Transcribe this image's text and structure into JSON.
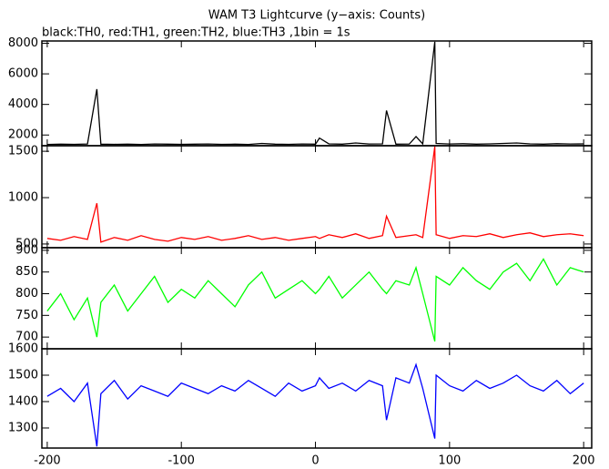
{
  "chart_data": [
    {
      "type": "line",
      "title": "WAM T3 Lightcurve (y−axis: Counts)",
      "subtitle": "black:TH0, red:TH1, green:TH2, blue:TH3 ,1bin = 1s",
      "x": [
        -200,
        -190,
        -180,
        -170,
        -163,
        -160,
        -150,
        -140,
        -130,
        -120,
        -110,
        -100,
        -90,
        -80,
        -70,
        -60,
        -50,
        -40,
        -30,
        -20,
        -10,
        0,
        3,
        10,
        20,
        30,
        40,
        50,
        53,
        60,
        70,
        75,
        80,
        89,
        90,
        100,
        110,
        120,
        130,
        140,
        150,
        160,
        170,
        180,
        190,
        200
      ],
      "series": [
        {
          "name": "TH0",
          "color": "#000000",
          "values": [
            1380,
            1400,
            1390,
            1410,
            5000,
            1400,
            1390,
            1400,
            1380,
            1410,
            1400,
            1390,
            1400,
            1410,
            1390,
            1400,
            1380,
            1450,
            1400,
            1390,
            1410,
            1400,
            1800,
            1420,
            1400,
            1480,
            1410,
            1420,
            3600,
            1400,
            1410,
            1900,
            1420,
            8100,
            1450,
            1410,
            1430,
            1400,
            1420,
            1450,
            1480,
            1420,
            1400,
            1430,
            1410,
            1420
          ]
        }
      ],
      "xlim": [
        -204,
        206
      ],
      "xticks": [
        -200,
        -100,
        0,
        100,
        200
      ],
      "ylim": [
        1300,
        8150
      ],
      "yticks": [
        2000,
        4000,
        6000,
        8000
      ]
    },
    {
      "type": "line",
      "x": [
        -200,
        -190,
        -180,
        -170,
        -163,
        -160,
        -150,
        -140,
        -130,
        -120,
        -110,
        -100,
        -90,
        -80,
        -70,
        -60,
        -50,
        -40,
        -30,
        -20,
        -10,
        0,
        3,
        10,
        20,
        30,
        40,
        50,
        53,
        60,
        70,
        75,
        80,
        89,
        90,
        100,
        110,
        120,
        130,
        140,
        150,
        160,
        170,
        180,
        190,
        200
      ],
      "series": [
        {
          "name": "TH1",
          "color": "#ff0000",
          "values": [
            560,
            540,
            580,
            550,
            940,
            520,
            570,
            540,
            590,
            550,
            530,
            570,
            550,
            580,
            540,
            560,
            590,
            550,
            570,
            540,
            560,
            580,
            560,
            600,
            570,
            610,
            560,
            590,
            800,
            570,
            590,
            600,
            570,
            1550,
            600,
            560,
            590,
            580,
            610,
            570,
            600,
            620,
            580,
            600,
            610,
            590
          ]
        }
      ],
      "xlim": [
        -204,
        206
      ],
      "xticks": [
        -200,
        -100,
        0,
        100,
        200
      ],
      "ylim": [
        460,
        1560
      ],
      "yticks": [
        500,
        1000,
        1500
      ]
    },
    {
      "type": "line",
      "x": [
        -200,
        -190,
        -180,
        -170,
        -163,
        -160,
        -150,
        -140,
        -130,
        -120,
        -110,
        -100,
        -90,
        -80,
        -70,
        -60,
        -50,
        -40,
        -30,
        -20,
        -10,
        0,
        3,
        10,
        20,
        30,
        40,
        50,
        53,
        60,
        70,
        75,
        80,
        89,
        90,
        100,
        110,
        120,
        130,
        140,
        150,
        160,
        170,
        180,
        190,
        200
      ],
      "series": [
        {
          "name": "TH2",
          "color": "#00ff00",
          "values": [
            760,
            800,
            740,
            790,
            700,
            780,
            820,
            760,
            800,
            840,
            780,
            810,
            790,
            830,
            800,
            770,
            820,
            850,
            790,
            810,
            830,
            800,
            810,
            840,
            790,
            820,
            850,
            810,
            800,
            830,
            820,
            860,
            800,
            690,
            840,
            820,
            860,
            830,
            810,
            850,
            870,
            830,
            880,
            820,
            860,
            850
          ]
        }
      ],
      "xlim": [
        -204,
        206
      ],
      "xticks": [
        -200,
        -100,
        0,
        100,
        200
      ],
      "ylim": [
        673,
        906
      ],
      "yticks": [
        700,
        750,
        800,
        850,
        900
      ]
    },
    {
      "type": "line",
      "x": [
        -200,
        -190,
        -180,
        -170,
        -163,
        -160,
        -150,
        -140,
        -130,
        -120,
        -110,
        -100,
        -90,
        -80,
        -70,
        -60,
        -50,
        -40,
        -30,
        -20,
        -10,
        0,
        3,
        10,
        20,
        30,
        40,
        50,
        53,
        60,
        70,
        75,
        80,
        89,
        90,
        100,
        110,
        120,
        130,
        140,
        150,
        160,
        170,
        180,
        190,
        200
      ],
      "series": [
        {
          "name": "TH3",
          "color": "#0000ff",
          "values": [
            1420,
            1450,
            1400,
            1470,
            1230,
            1430,
            1480,
            1410,
            1460,
            1440,
            1420,
            1470,
            1450,
            1430,
            1460,
            1440,
            1480,
            1450,
            1420,
            1470,
            1440,
            1460,
            1490,
            1450,
            1470,
            1440,
            1480,
            1460,
            1330,
            1490,
            1470,
            1540,
            1450,
            1260,
            1500,
            1460,
            1440,
            1480,
            1450,
            1470,
            1500,
            1460,
            1440,
            1480,
            1430,
            1470
          ]
        }
      ],
      "xlim": [
        -204,
        206
      ],
      "xticks": [
        -200,
        -100,
        0,
        100,
        200
      ],
      "ylim": [
        1224,
        1600
      ],
      "yticks": [
        1300,
        1400,
        1500,
        1600
      ]
    }
  ]
}
